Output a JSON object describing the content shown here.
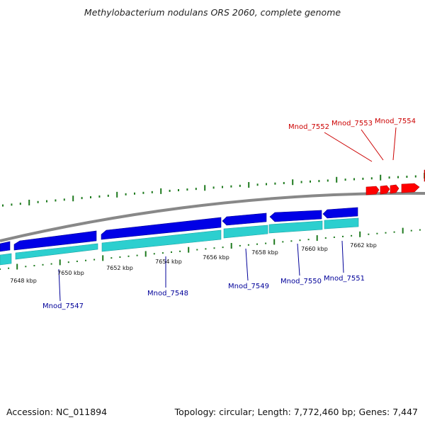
{
  "title": "Methylobacterium nodulans ORS 2060, complete genome",
  "footer": {
    "accession": "Accession: NC_011894",
    "summary": "Topology: circular; Length: 7,772,460 bp; Genes: 7,447"
  },
  "colors": {
    "forward_gene": "#ff0000",
    "reverse_gene": "#0000e6",
    "cds": "#2ccfcf",
    "tick": "#1e7a1e",
    "backbone": "#888888",
    "forward_label": "#cc0000",
    "reverse_label": "#000099"
  },
  "ticks": [
    {
      "label": "7648 kbp"
    },
    {
      "label": "7650 kbp"
    },
    {
      "label": "7652 kbp"
    },
    {
      "label": "7654 kbp"
    },
    {
      "label": "7656 kbp"
    },
    {
      "label": "7658 kbp"
    },
    {
      "label": "7660 kbp"
    },
    {
      "label": "7662 kbp"
    }
  ],
  "forward_genes": [
    {
      "name": "Mnod_7552"
    },
    {
      "name": "Mnod_7553"
    },
    {
      "name": "Mnod_7554"
    }
  ],
  "reverse_genes": [
    {
      "name": "Mnod_7547"
    },
    {
      "name": "Mnod_7548"
    },
    {
      "name": "Mnod_7549"
    },
    {
      "name": "Mnod_7550"
    },
    {
      "name": "Mnod_7551"
    }
  ]
}
